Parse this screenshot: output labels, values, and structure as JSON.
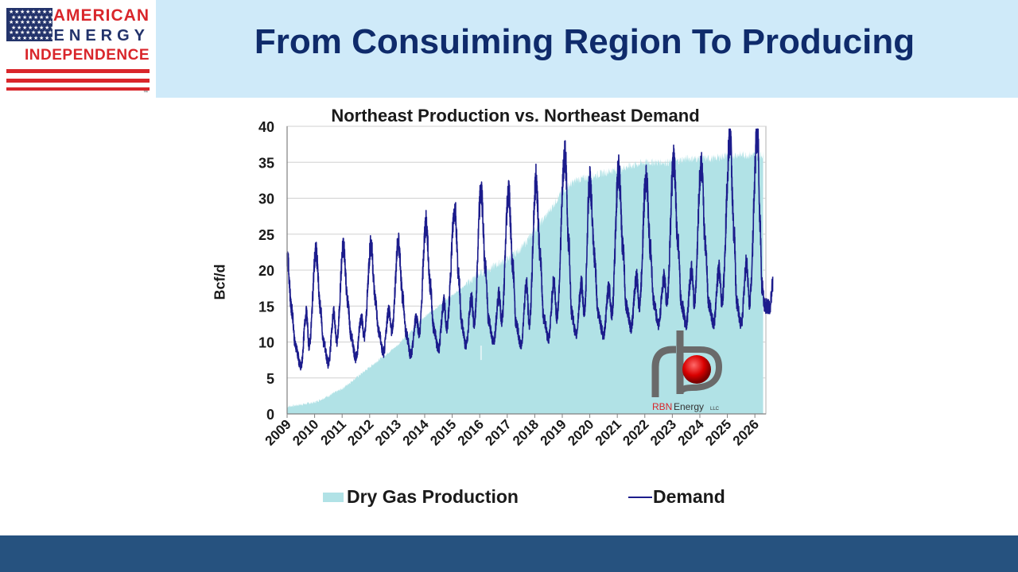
{
  "header": {
    "title": "From Consuiming Region To Producing",
    "background": "#cfeaf9",
    "title_color": "#0f2b6b"
  },
  "logo": {
    "line1": "AMERICAN",
    "line2": "ENERGY",
    "line3": "INDEPENDENCE",
    "trademark": "™",
    "icon": "us-flag-icon"
  },
  "footer": {
    "background": "#26527f"
  },
  "chart_data": {
    "type": "area",
    "title": "Northeast Production vs. Northeast Demand",
    "xlabel": "",
    "ylabel": "Bcf/d",
    "ylim": [
      0,
      40
    ],
    "yticks": [
      0,
      5,
      10,
      15,
      20,
      25,
      30,
      35,
      40
    ],
    "xlim": [
      2009,
      2026.4
    ],
    "xticks": [
      "2009",
      "2010",
      "2011",
      "2012",
      "2013",
      "2014",
      "2015",
      "2016",
      "2017",
      "2018",
      "2019",
      "2020",
      "2021",
      "2022",
      "2023",
      "2024",
      "2025",
      "2026"
    ],
    "grid": "horizontal",
    "legend_position": "bottom",
    "series": [
      {
        "name": "Dry Gas Production",
        "kind": "area",
        "color": "#b1e2e6",
        "x": [
          2009.0,
          2009.5,
          2010.0,
          2010.5,
          2011.0,
          2011.5,
          2012.0,
          2012.5,
          2013.0,
          2013.5,
          2014.0,
          2014.5,
          2015.0,
          2015.5,
          2016.0,
          2016.5,
          2017.0,
          2017.5,
          2018.0,
          2018.5,
          2019.0,
          2019.5,
          2020.0,
          2020.5,
          2021.0,
          2021.5,
          2022.0,
          2022.5,
          2023.0,
          2023.5,
          2024.0,
          2024.5,
          2025.0,
          2025.5,
          2026.0,
          2026.3
        ],
        "y": [
          1.0,
          1.3,
          1.6,
          2.5,
          3.5,
          5.0,
          6.5,
          8.0,
          9.5,
          11.5,
          13.5,
          15.0,
          16.5,
          18.0,
          19.5,
          20.5,
          21.5,
          23.0,
          25.5,
          28.0,
          31.0,
          32.5,
          33.0,
          33.5,
          34.0,
          34.5,
          35.0,
          35.0,
          35.0,
          35.5,
          35.5,
          35.5,
          36.0,
          36.0,
          36.0,
          36.0
        ]
      },
      {
        "name": "Demand",
        "kind": "line",
        "color": "#1c1c8c",
        "winter_peaks": [
          [
            2009.0,
            22.0
          ],
          [
            2010.05,
            22.5
          ],
          [
            2011.05,
            23.2
          ],
          [
            2012.05,
            23.5
          ],
          [
            2013.05,
            23.8
          ],
          [
            2014.05,
            26.5
          ],
          [
            2015.1,
            28.5
          ],
          [
            2016.05,
            31.0
          ],
          [
            2017.05,
            31.0
          ],
          [
            2018.05,
            32.5
          ],
          [
            2019.1,
            36.0
          ],
          [
            2020.0,
            32.5
          ],
          [
            2021.05,
            34.0
          ],
          [
            2022.05,
            33.0
          ],
          [
            2023.05,
            35.0
          ],
          [
            2024.05,
            34.5
          ],
          [
            2025.1,
            38.5
          ],
          [
            2026.1,
            39.5
          ]
        ],
        "summer_lows": [
          [
            2009.5,
            6.5
          ],
          [
            2010.5,
            7.0
          ],
          [
            2011.5,
            7.8
          ],
          [
            2012.5,
            8.5
          ],
          [
            2013.5,
            8.2
          ],
          [
            2014.5,
            9.0
          ],
          [
            2015.5,
            9.5
          ],
          [
            2016.5,
            10.0
          ],
          [
            2017.5,
            9.5
          ],
          [
            2018.5,
            10.5
          ],
          [
            2019.5,
            11.0
          ],
          [
            2020.5,
            11.0
          ],
          [
            2021.5,
            12.0
          ],
          [
            2022.5,
            12.5
          ],
          [
            2023.5,
            12.5
          ],
          [
            2024.5,
            12.5
          ],
          [
            2025.5,
            12.5
          ],
          [
            2026.35,
            15.0
          ]
        ],
        "summer_bumps": [
          14.0,
          14.0,
          13.5,
          14.5,
          13.5,
          15.5,
          16.0,
          16.5,
          18.0,
          18.5,
          18.0,
          17.5,
          19.0,
          19.0,
          20.0,
          20.0,
          21.0
        ]
      }
    ]
  },
  "watermark": {
    "logo_text": "RBN",
    "logo_text2": "Energy",
    "logo_suffix": "LLC"
  }
}
